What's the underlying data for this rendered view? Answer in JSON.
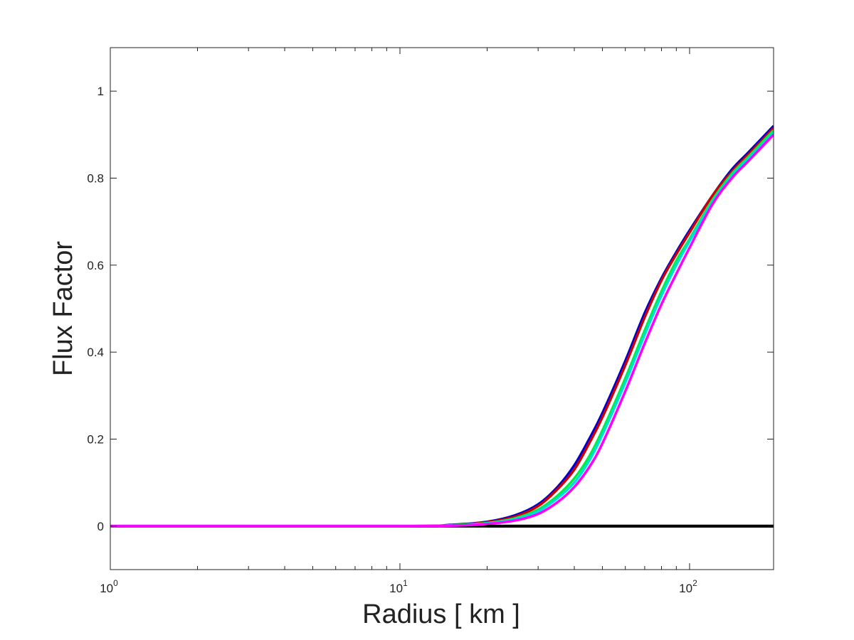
{
  "chart_data": {
    "type": "line",
    "title": "",
    "xlabel": "Radius [ km ]",
    "ylabel": "Flux Factor",
    "xscale": "log",
    "xlim": [
      1,
      195
    ],
    "ylim": [
      -0.1,
      1.1
    ],
    "grid": false,
    "legend": "none",
    "x_ticks": [
      {
        "value": 1,
        "base": "10",
        "exp": "0"
      },
      {
        "value": 10,
        "base": "10",
        "exp": "1"
      },
      {
        "value": 100,
        "base": "10",
        "exp": "2"
      }
    ],
    "y_ticks": [
      {
        "value": 0,
        "label": "0"
      },
      {
        "value": 0.2,
        "label": "0.2"
      },
      {
        "value": 0.4,
        "label": "0.4"
      },
      {
        "value": 0.6,
        "label": "0.6"
      },
      {
        "value": 0.8,
        "label": "0.8"
      },
      {
        "value": 1,
        "label": "1"
      }
    ],
    "series": [
      {
        "color": "#000000",
        "x": [
          1,
          195
        ],
        "values": [
          0,
          0
        ]
      },
      {
        "color": "#0000cc",
        "x": [
          1,
          10,
          15,
          20,
          25,
          30,
          35,
          40,
          45,
          50,
          60,
          70,
          80,
          90,
          100,
          120,
          140,
          160,
          195
        ],
        "values": [
          0,
          0,
          0.003,
          0.01,
          0.025,
          0.05,
          0.09,
          0.14,
          0.2,
          0.26,
          0.38,
          0.49,
          0.57,
          0.63,
          0.68,
          0.76,
          0.82,
          0.86,
          0.92
        ]
      },
      {
        "color": "#cc0000",
        "x": [
          1,
          10,
          15,
          20,
          25,
          30,
          35,
          40,
          45,
          50,
          60,
          70,
          80,
          90,
          100,
          120,
          140,
          160,
          195
        ],
        "values": [
          0,
          0,
          0.002,
          0.009,
          0.022,
          0.046,
          0.085,
          0.13,
          0.19,
          0.25,
          0.37,
          0.48,
          0.565,
          0.625,
          0.675,
          0.76,
          0.815,
          0.855,
          0.915
        ]
      },
      {
        "color": "#00ee44",
        "x": [
          1,
          10,
          15,
          20,
          25,
          30,
          35,
          40,
          45,
          50,
          60,
          70,
          80,
          90,
          100,
          120,
          140,
          160,
          195
        ],
        "values": [
          0,
          0,
          0.002,
          0.007,
          0.018,
          0.038,
          0.07,
          0.11,
          0.16,
          0.22,
          0.34,
          0.45,
          0.54,
          0.61,
          0.66,
          0.75,
          0.81,
          0.85,
          0.91
        ]
      },
      {
        "color": "#00dddd",
        "x": [
          1,
          10,
          15,
          20,
          25,
          30,
          35,
          40,
          45,
          50,
          60,
          70,
          80,
          90,
          100,
          120,
          140,
          160,
          195
        ],
        "values": [
          0,
          0,
          0.001,
          0.006,
          0.016,
          0.034,
          0.064,
          0.1,
          0.15,
          0.21,
          0.33,
          0.44,
          0.53,
          0.6,
          0.655,
          0.745,
          0.805,
          0.845,
          0.905
        ]
      },
      {
        "color": "#ff00ff",
        "x": [
          1,
          10,
          15,
          20,
          25,
          30,
          35,
          40,
          45,
          50,
          60,
          70,
          80,
          90,
          100,
          120,
          140,
          160,
          195
        ],
        "values": [
          0,
          0,
          0.001,
          0.005,
          0.013,
          0.028,
          0.055,
          0.09,
          0.135,
          0.19,
          0.31,
          0.42,
          0.51,
          0.58,
          0.64,
          0.74,
          0.8,
          0.84,
          0.9
        ]
      }
    ]
  }
}
